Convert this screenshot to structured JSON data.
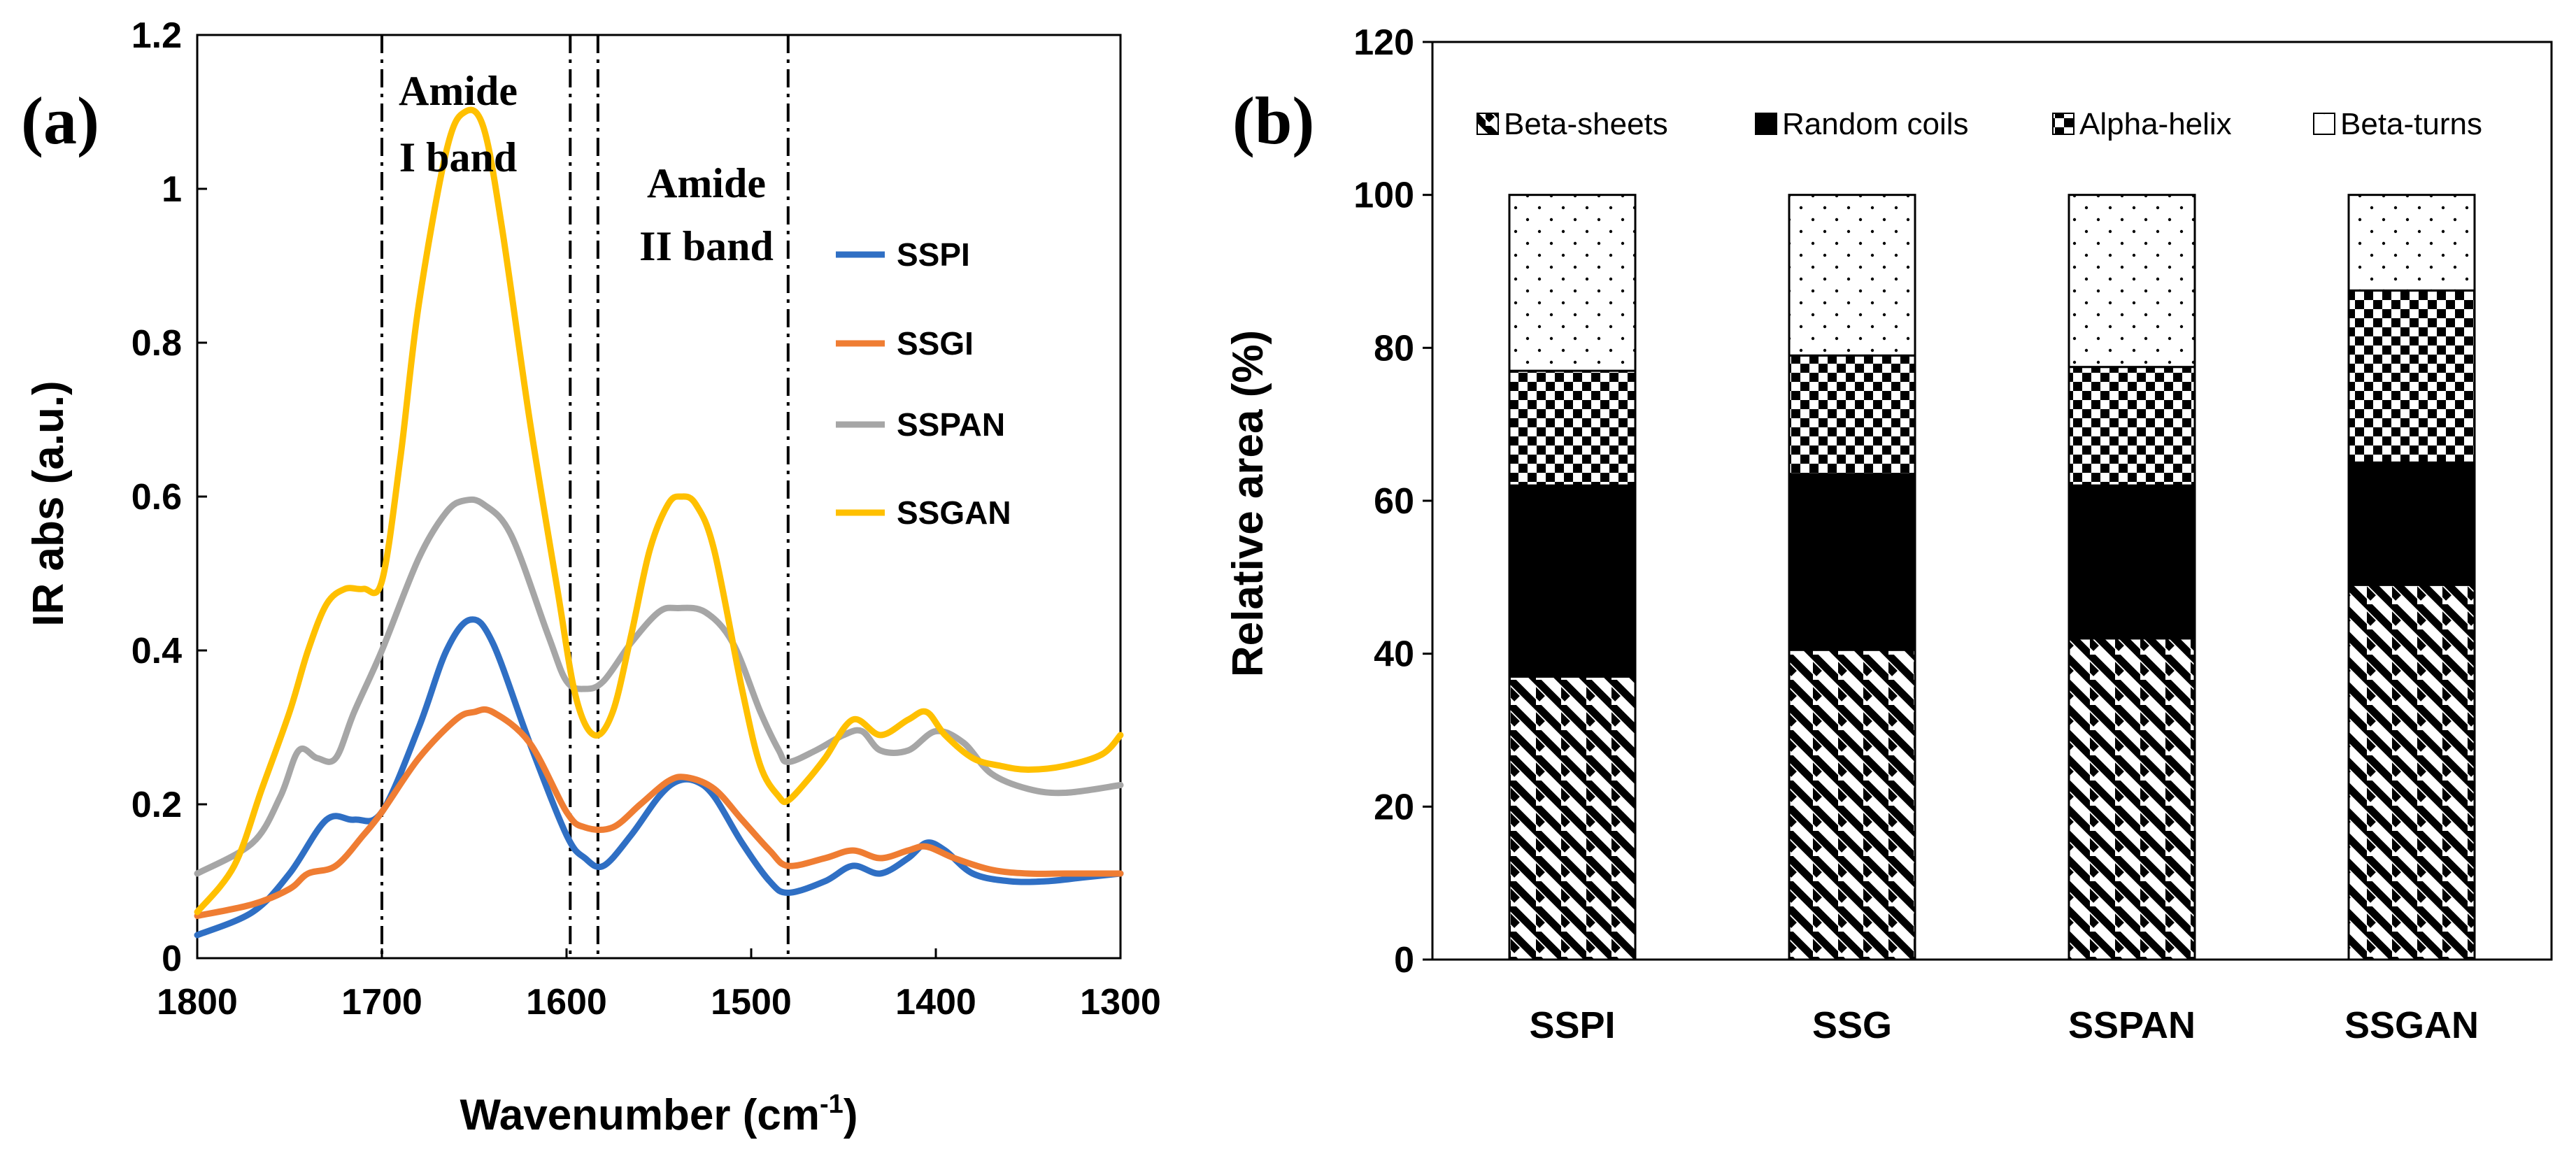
{
  "colors": {
    "SSPI": "#2f6fc4",
    "SSGI": "#ef7d33",
    "SSPAN": "#a6a6a6",
    "SSGAN": "#ffc000"
  },
  "chart_data": [
    {
      "type": "line",
      "panel_label": "(a)",
      "xlabel": "Wavenumber (cm",
      "xlabel_sup": "-1",
      "xlabel_end": ")",
      "ylabel": "IR abs (a.u.)",
      "xlim": [
        1800,
        1300
      ],
      "ylim": [
        0,
        1.2
      ],
      "x_ticks": [
        "1800",
        "1700",
        "1600",
        "1500",
        "1400",
        "1300"
      ],
      "y_ticks": [
        "0",
        "0.2",
        "0.4",
        "0.6",
        "0.8",
        "1",
        "1.2"
      ],
      "band_lines": [
        1700,
        1598,
        1583,
        1480
      ],
      "annotations": [
        {
          "line1": "Amide",
          "line2": "I band",
          "x": 1650
        },
        {
          "line1": "Amide",
          "line2": "II band",
          "x": 1532
        }
      ],
      "series": [
        {
          "name": "SSPI",
          "x": [
            1800,
            1770,
            1750,
            1730,
            1715,
            1700,
            1680,
            1665,
            1652,
            1640,
            1620,
            1600,
            1590,
            1580,
            1565,
            1550,
            1540,
            1530,
            1520,
            1505,
            1490,
            1480,
            1460,
            1445,
            1430,
            1415,
            1405,
            1395,
            1380,
            1360,
            1340,
            1320,
            1300
          ],
          "y": [
            0.03,
            0.06,
            0.11,
            0.18,
            0.18,
            0.19,
            0.3,
            0.4,
            0.44,
            0.41,
            0.28,
            0.16,
            0.13,
            0.12,
            0.16,
            0.21,
            0.23,
            0.23,
            0.21,
            0.15,
            0.1,
            0.085,
            0.1,
            0.12,
            0.11,
            0.13,
            0.15,
            0.14,
            0.11,
            0.1,
            0.1,
            0.105,
            0.11
          ]
        },
        {
          "name": "SSGI",
          "x": [
            1800,
            1770,
            1750,
            1740,
            1725,
            1710,
            1700,
            1680,
            1660,
            1650,
            1640,
            1620,
            1600,
            1590,
            1575,
            1560,
            1545,
            1535,
            1520,
            1505,
            1490,
            1480,
            1460,
            1445,
            1430,
            1415,
            1405,
            1390,
            1370,
            1350,
            1330,
            1300
          ],
          "y": [
            0.055,
            0.07,
            0.09,
            0.11,
            0.12,
            0.16,
            0.19,
            0.26,
            0.31,
            0.32,
            0.32,
            0.28,
            0.19,
            0.17,
            0.17,
            0.2,
            0.23,
            0.235,
            0.22,
            0.18,
            0.14,
            0.12,
            0.13,
            0.14,
            0.13,
            0.14,
            0.145,
            0.13,
            0.115,
            0.11,
            0.11,
            0.11
          ]
        },
        {
          "name": "SSPAN",
          "x": [
            1800,
            1770,
            1755,
            1745,
            1735,
            1725,
            1715,
            1700,
            1680,
            1665,
            1655,
            1645,
            1630,
            1610,
            1600,
            1590,
            1580,
            1565,
            1550,
            1540,
            1525,
            1510,
            1495,
            1485,
            1480,
            1465,
            1450,
            1440,
            1430,
            1415,
            1400,
            1385,
            1370,
            1350,
            1330,
            1300
          ],
          "y": [
            0.11,
            0.15,
            0.21,
            0.27,
            0.26,
            0.26,
            0.32,
            0.4,
            0.52,
            0.58,
            0.595,
            0.59,
            0.55,
            0.42,
            0.36,
            0.35,
            0.36,
            0.41,
            0.45,
            0.455,
            0.45,
            0.41,
            0.32,
            0.27,
            0.255,
            0.27,
            0.29,
            0.295,
            0.27,
            0.27,
            0.295,
            0.28,
            0.24,
            0.22,
            0.215,
            0.225
          ]
        },
        {
          "name": "SSGAN",
          "x": [
            1800,
            1780,
            1765,
            1750,
            1740,
            1730,
            1720,
            1710,
            1700,
            1690,
            1680,
            1665,
            1655,
            1645,
            1635,
            1620,
            1605,
            1595,
            1585,
            1575,
            1565,
            1555,
            1545,
            1538,
            1530,
            1520,
            1505,
            1495,
            1485,
            1480,
            1470,
            1460,
            1445,
            1430,
            1415,
            1405,
            1395,
            1380,
            1365,
            1350,
            1330,
            1310,
            1300
          ],
          "y": [
            0.06,
            0.12,
            0.22,
            0.32,
            0.4,
            0.46,
            0.48,
            0.48,
            0.49,
            0.65,
            0.85,
            1.05,
            1.1,
            1.08,
            0.95,
            0.7,
            0.48,
            0.34,
            0.29,
            0.32,
            0.42,
            0.53,
            0.59,
            0.6,
            0.59,
            0.53,
            0.35,
            0.25,
            0.21,
            0.205,
            0.23,
            0.26,
            0.31,
            0.29,
            0.31,
            0.32,
            0.29,
            0.26,
            0.25,
            0.245,
            0.25,
            0.265,
            0.29
          ]
        }
      ]
    },
    {
      "type": "bar",
      "stacked": true,
      "panel_label": "(b)",
      "ylabel": "Relative area (%)",
      "ylim": [
        0,
        120
      ],
      "y_ticks": [
        "0",
        "20",
        "40",
        "60",
        "80",
        "100",
        "120"
      ],
      "categories": [
        "SSPI",
        "SSG",
        "SSPAN",
        "SSGAN"
      ],
      "series": [
        {
          "name": "Beta-sheets",
          "pattern": "diagonal",
          "values": [
            37,
            40.5,
            42,
            49
          ]
        },
        {
          "name": "Random coils",
          "pattern": "solid",
          "values": [
            25,
            23,
            20,
            16
          ]
        },
        {
          "name": "Alpha-helix",
          "pattern": "checker",
          "values": [
            15,
            15.5,
            15.5,
            22.5
          ]
        },
        {
          "name": "Beta-turns",
          "pattern": "dots",
          "values": [
            23,
            21,
            22.5,
            12.5
          ]
        }
      ]
    }
  ]
}
